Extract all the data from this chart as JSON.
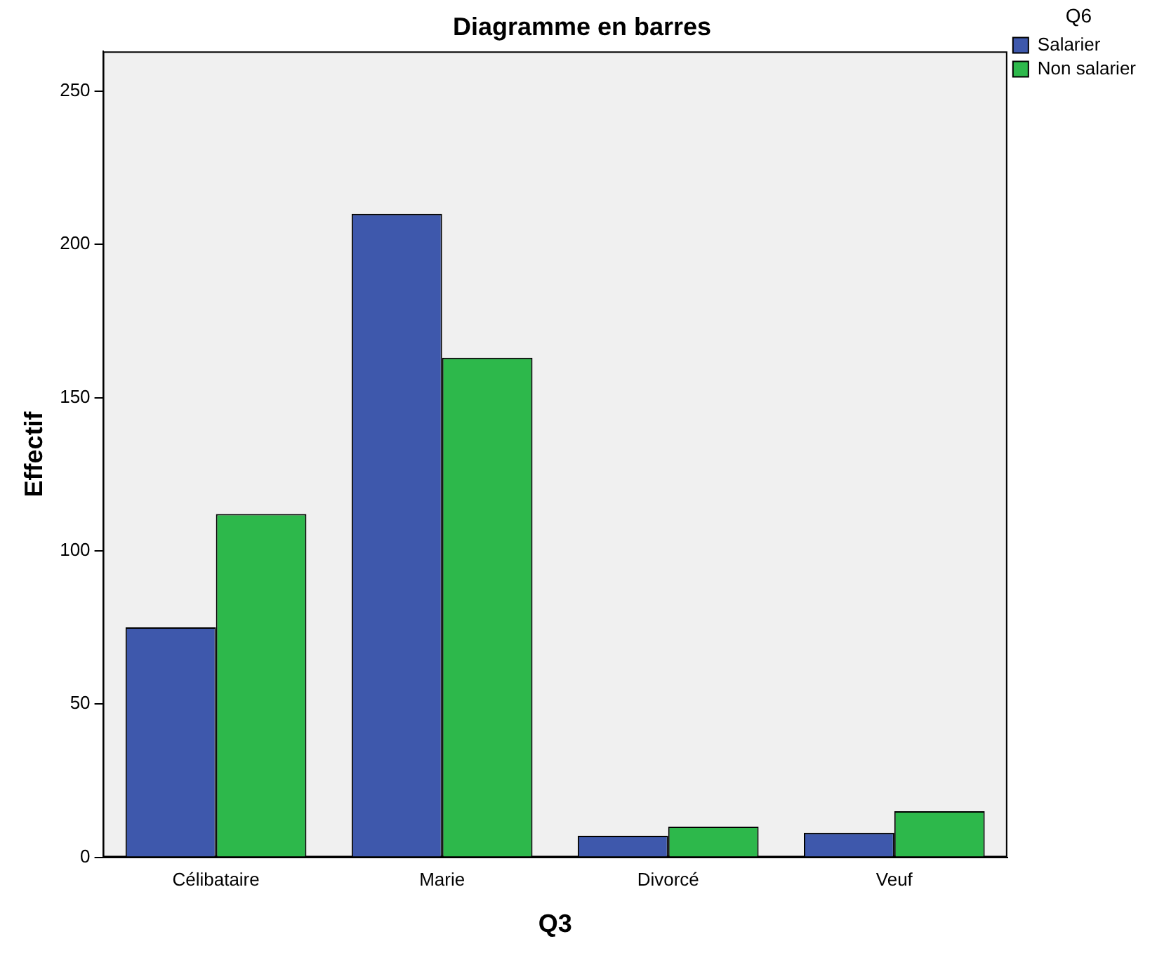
{
  "chart_data": {
    "type": "bar",
    "title": "Diagramme en barres",
    "xlabel": "Q3",
    "ylabel": "Effectif",
    "legend_title": "Q6",
    "legend": "right",
    "categories": [
      "Célibataire",
      "Marie",
      "Divorcé",
      "Veuf"
    ],
    "series": [
      {
        "name": "Salarier",
        "color": "#3e58ac",
        "values": [
          75,
          210,
          7,
          8
        ]
      },
      {
        "name": "Non salarier",
        "color": "#2db84b",
        "values": [
          112,
          163,
          10,
          15
        ]
      }
    ],
    "ylim": [
      0,
      263
    ],
    "yticks": [
      0,
      50,
      100,
      150,
      200,
      250
    ],
    "grid": false
  }
}
